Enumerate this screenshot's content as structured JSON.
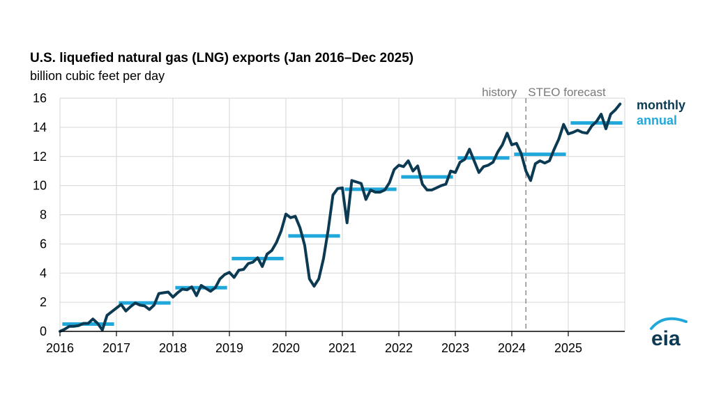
{
  "chart_data": {
    "type": "line",
    "title": "U.S. liquefied natural gas (LNG) exports (Jan 2016–Dec 2025)",
    "subtitle": "billion cubic feet per day",
    "ylim": [
      0,
      16
    ],
    "yticks": [
      0,
      2,
      4,
      6,
      8,
      10,
      12,
      14,
      16
    ],
    "xlim": [
      2016,
      2026
    ],
    "xticks": [
      "2016",
      "2017",
      "2018",
      "2019",
      "2020",
      "2021",
      "2022",
      "2023",
      "2024",
      "2025"
    ],
    "grid": true,
    "forecast_start": "Apr 2024",
    "zone_labels": {
      "history": "history",
      "forecast": "STEO forecast"
    },
    "legend": {
      "position": "top-right"
    },
    "colors": {
      "monthly": "#0b3a52",
      "annual": "#21a8db",
      "grid": "#d6d6d6",
      "divider": "#8c8c8c"
    },
    "series": [
      {
        "name": "monthly",
        "start": "Jan 2016",
        "frequency": "monthly",
        "values": [
          0.0,
          0.15,
          0.35,
          0.35,
          0.4,
          0.55,
          0.55,
          0.85,
          0.55,
          0.1,
          1.1,
          1.35,
          1.6,
          1.85,
          1.4,
          1.7,
          1.95,
          1.8,
          1.75,
          1.5,
          1.8,
          2.6,
          2.65,
          2.7,
          2.35,
          2.65,
          2.9,
          2.85,
          3.05,
          2.45,
          3.15,
          2.95,
          2.75,
          3.0,
          3.6,
          3.9,
          4.05,
          3.7,
          4.2,
          4.25,
          4.65,
          4.75,
          5.05,
          4.45,
          5.3,
          5.55,
          6.1,
          6.9,
          8.05,
          7.8,
          7.9,
          7.1,
          5.9,
          3.6,
          3.1,
          3.6,
          5.0,
          7.0,
          9.35,
          9.8,
          9.85,
          7.45,
          10.35,
          10.25,
          10.15,
          9.05,
          9.7,
          9.55,
          9.55,
          9.7,
          10.2,
          11.1,
          11.4,
          11.3,
          11.7,
          11.0,
          11.35,
          10.1,
          9.7,
          9.7,
          9.85,
          10.0,
          10.1,
          11.0,
          10.9,
          11.6,
          11.8,
          12.5,
          11.7,
          10.9,
          11.3,
          11.4,
          11.6,
          12.3,
          12.8,
          13.6,
          12.8,
          12.9,
          12.2,
          11.0,
          10.35,
          11.5,
          11.7,
          11.55,
          11.7,
          12.5,
          13.2,
          14.2,
          13.55,
          13.65,
          13.8,
          13.65,
          13.6,
          14.1,
          14.4,
          14.9,
          13.9,
          14.9,
          15.2,
          15.6
        ]
      },
      {
        "name": "annual",
        "frequency": "annual",
        "years": [
          2016,
          2017,
          2018,
          2019,
          2020,
          2021,
          2022,
          2023,
          2024,
          2025
        ],
        "values": [
          0.5,
          1.95,
          3.0,
          5.0,
          6.55,
          9.75,
          10.6,
          11.9,
          12.15,
          14.3
        ]
      }
    ]
  },
  "logo": {
    "text": "eia"
  }
}
